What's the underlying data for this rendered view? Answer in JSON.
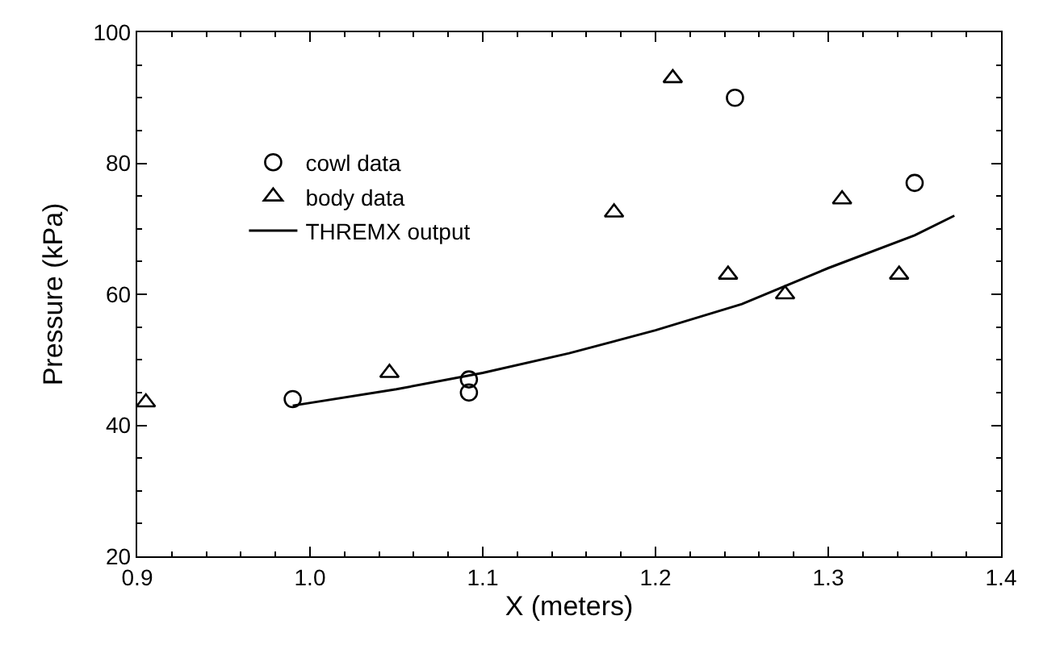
{
  "chart_data": {
    "type": "scatter",
    "xlabel": "X (meters)",
    "ylabel": "Pressure (kPa)",
    "xlim": [
      0.9,
      1.4
    ],
    "xticks": [
      {
        "value": 0.9,
        "label": "0.9"
      },
      {
        "value": 1,
        "label": "1.0"
      },
      {
        "value": 1.1,
        "label": "1.1"
      },
      {
        "value": 1.2,
        "label": "1.2"
      },
      {
        "value": 1.3,
        "label": "1.3"
      },
      {
        "value": 1.4,
        "label": "1.4"
      }
    ],
    "ylim": [
      20,
      100
    ],
    "yticks": [
      20,
      40,
      60,
      80,
      100
    ],
    "grid": false,
    "legend": "top left",
    "series": [
      {
        "name": "cowl data",
        "color": "#000000",
        "marker": "circle",
        "x": [
          0.99,
          1.092,
          1.092,
          1.246,
          1.35
        ],
        "values": [
          44,
          47,
          45,
          90,
          77
        ]
      },
      {
        "name": "body data",
        "color": "#000000",
        "marker": "triangle",
        "x": [
          0.905,
          1.046,
          1.176,
          1.21,
          1.242,
          1.275,
          1.308,
          1.341
        ],
        "values": [
          43.5,
          48,
          72.5,
          93,
          63,
          60,
          74.5,
          63
        ]
      },
      {
        "name": "THREMX output",
        "type": "line",
        "color": "#000000",
        "marker": "none",
        "line_style": "solid",
        "x": [
          0.99,
          1.05,
          1.1,
          1.15,
          1.2,
          1.25,
          1.3,
          1.35,
          1.373
        ],
        "values": [
          43,
          45.5,
          48,
          51,
          54.5,
          58.5,
          64,
          69,
          72
        ]
      }
    ]
  }
}
